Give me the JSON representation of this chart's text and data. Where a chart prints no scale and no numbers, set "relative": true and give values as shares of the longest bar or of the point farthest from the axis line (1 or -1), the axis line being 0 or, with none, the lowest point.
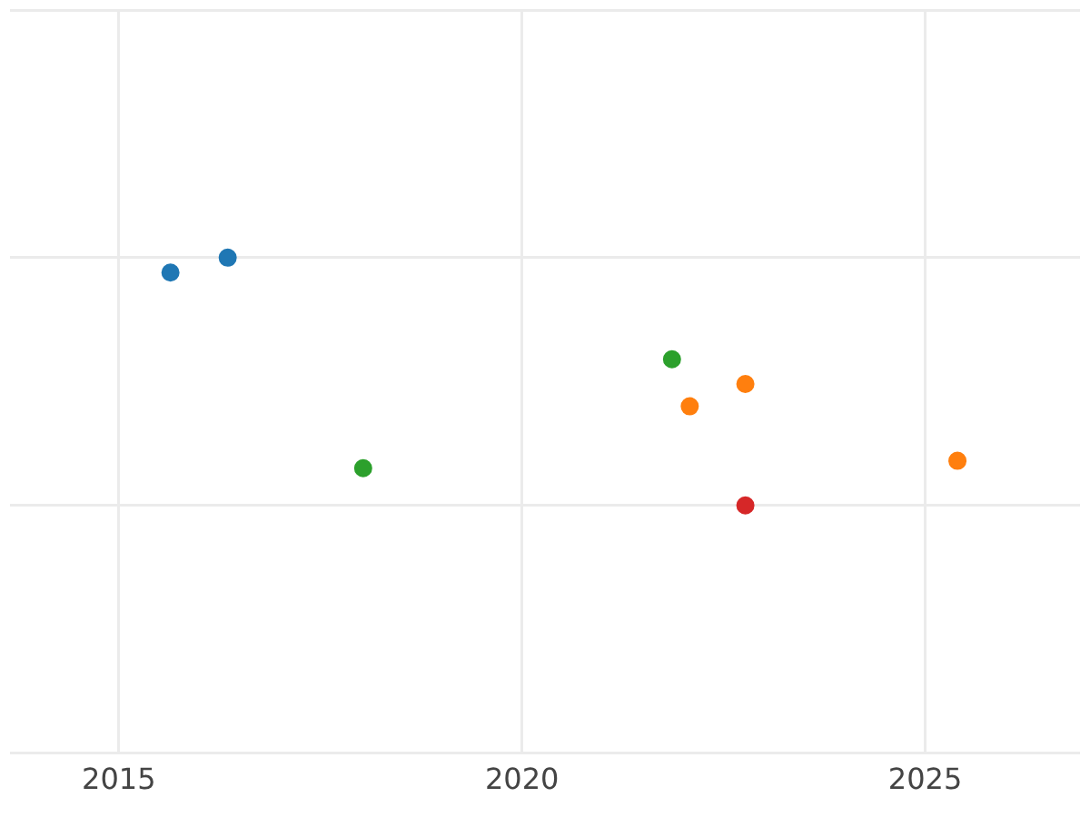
{
  "chart_data": {
    "type": "scatter",
    "relative": true,
    "xlim": [
      2013.65,
      2026.92
    ],
    "xticks": [
      2015,
      2020,
      2025
    ],
    "grid": true,
    "legend": false,
    "marker": "circle",
    "series": [
      {
        "color": "#1f77b4",
        "x": [
          2015.64,
          2016.35
        ],
        "values": [
          0.94,
          1.0
        ]
      },
      {
        "color": "#ff7f0e",
        "x": [
          2022.77,
          2022.08,
          2025.4
        ],
        "values": [
          0.49,
          0.4,
          0.18
        ]
      },
      {
        "color": "#2ca02c",
        "x": [
          2021.86,
          2018.03
        ],
        "values": [
          0.59,
          0.15
        ]
      },
      {
        "color": "#d62728",
        "x": [
          2022.77
        ],
        "values": [
          0
        ]
      }
    ]
  }
}
